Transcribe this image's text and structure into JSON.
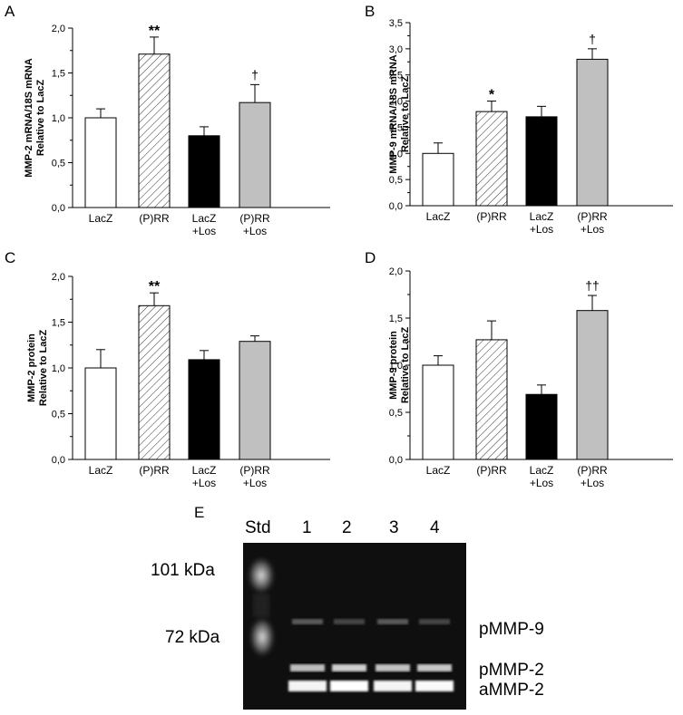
{
  "chart_data": [
    {
      "panel": "A",
      "type": "bar",
      "ylabel": [
        "MMP-2 mRNA/18S mRNA",
        "Relative to LacZ"
      ],
      "ylim": [
        0,
        2.0
      ],
      "yticks": [
        "0,0",
        "0,5",
        "1,0",
        "1,5",
        "2,0"
      ],
      "categories": [
        [
          "LacZ"
        ],
        [
          "(P)RR"
        ],
        [
          "LacZ",
          "+Los"
        ],
        [
          "(P)RR",
          "+Los"
        ]
      ],
      "values": [
        1.0,
        1.71,
        0.8,
        1.17
      ],
      "errors": [
        0.1,
        0.19,
        0.1,
        0.2
      ],
      "annotations": [
        "",
        "**",
        "",
        "†"
      ],
      "fills": [
        "white",
        "hatch",
        "black",
        "gray"
      ]
    },
    {
      "panel": "B",
      "type": "bar",
      "ylabel": [
        "MMP-9 mRNA/18S mRNA",
        "Relative to LacZ"
      ],
      "ylim": [
        0,
        3.5
      ],
      "yticks": [
        "0,0",
        "0,5",
        "1,0",
        "1,5",
        "2,0",
        "2,5",
        "3,0",
        "3,5"
      ],
      "categories": [
        [
          "LacZ"
        ],
        [
          "(P)RR"
        ],
        [
          "LacZ",
          "+Los"
        ],
        [
          "(P)RR",
          "+Los"
        ]
      ],
      "values": [
        1.0,
        1.8,
        1.7,
        2.8
      ],
      "errors": [
        0.2,
        0.2,
        0.2,
        0.2
      ],
      "annotations": [
        "",
        "*",
        "",
        "†"
      ],
      "fills": [
        "white",
        "hatch",
        "black",
        "gray"
      ]
    },
    {
      "panel": "C",
      "type": "bar",
      "ylabel": [
        "MMP-2 protein",
        "Relative to LacZ"
      ],
      "ylim": [
        0,
        2.0
      ],
      "yticks": [
        "0,0",
        "0,5",
        "1,0",
        "1,5",
        "2,0"
      ],
      "categories": [
        [
          "LacZ"
        ],
        [
          "(P)RR"
        ],
        [
          "LacZ",
          "+Los"
        ],
        [
          "(P)RR",
          "+Los"
        ]
      ],
      "values": [
        1.0,
        1.68,
        1.09,
        1.29
      ],
      "errors": [
        0.2,
        0.14,
        0.1,
        0.06
      ],
      "annotations": [
        "",
        "**",
        "",
        ""
      ],
      "fills": [
        "white",
        "hatch",
        "black",
        "gray"
      ]
    },
    {
      "panel": "D",
      "type": "bar",
      "ylabel": [
        "MMP-9 protein",
        "Relative to LacZ"
      ],
      "ylim": [
        0,
        2.0
      ],
      "yticks": [
        "0,0",
        "0,5",
        "1,0",
        "1,5",
        "2,0"
      ],
      "categories": [
        [
          "LacZ"
        ],
        [
          "(P)RR"
        ],
        [
          "LacZ",
          "+Los"
        ],
        [
          "(P)RR",
          "+Los"
        ]
      ],
      "values": [
        1.0,
        1.27,
        0.69,
        1.58
      ],
      "errors": [
        0.1,
        0.2,
        0.1,
        0.16
      ],
      "annotations": [
        "",
        "",
        "",
        "††"
      ],
      "fills": [
        "white",
        "hatch",
        "black",
        "gray"
      ]
    }
  ],
  "gel": {
    "panel": "E",
    "lane_labels": [
      "Std",
      "1",
      "2",
      "3",
      "4"
    ],
    "marker_labels": [
      "101 kDa",
      "72 kDa"
    ],
    "band_labels": [
      "pMMP-9",
      "pMMP-2",
      "aMMP-2"
    ]
  }
}
